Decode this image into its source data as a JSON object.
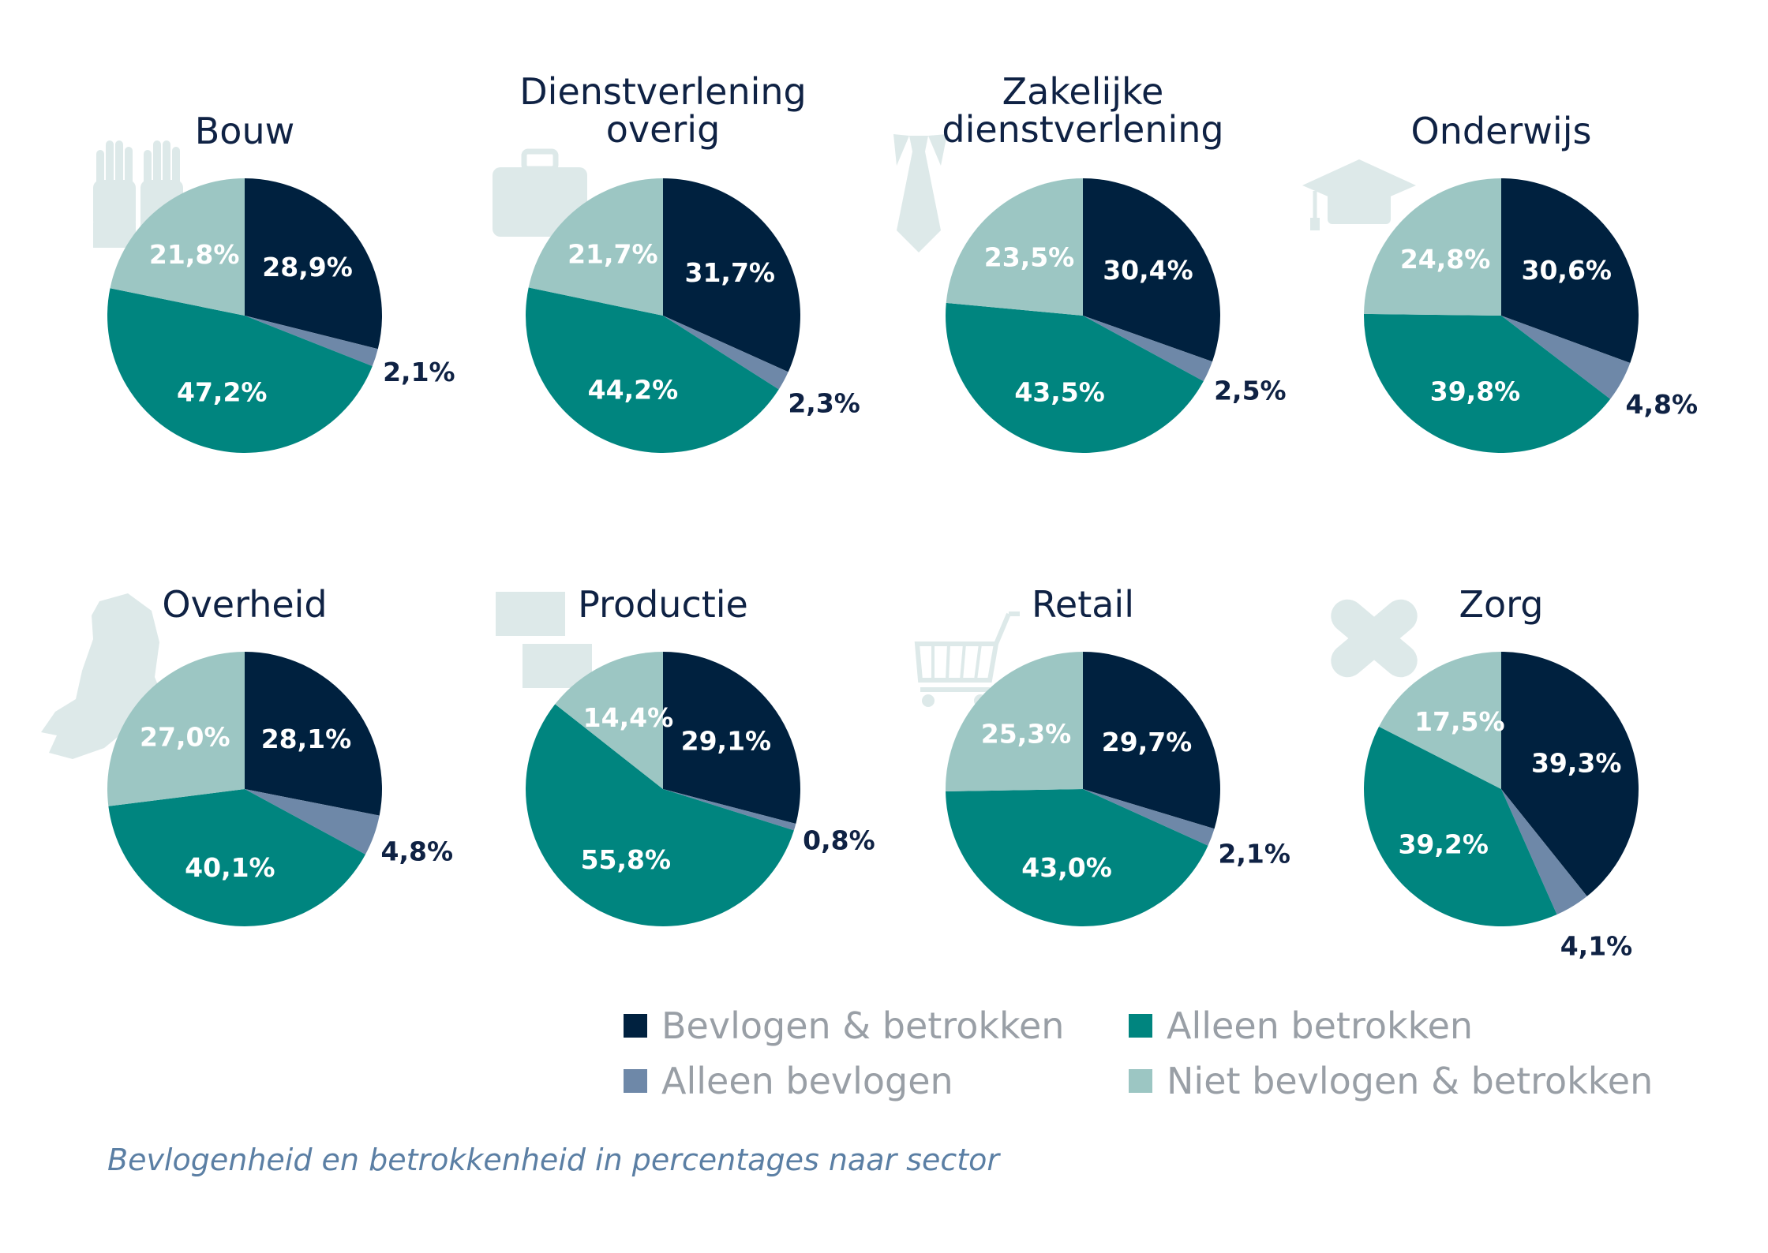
{
  "colors": {
    "bevlogen_betrokken": "#00213f",
    "alleen_bevlogen": "#6e88a8",
    "alleen_betrokken": "#00857f",
    "niet": "#9cc6c3",
    "icon": "#dde9e9",
    "title": "#0f2244",
    "legend_text": "#999fa6",
    "caption": "#5b7fa4"
  },
  "legend": [
    {
      "label": "Bevlogen & betrokken",
      "color": "#00213f"
    },
    {
      "label": "Alleen betrokken",
      "color": "#00857f"
    },
    {
      "label": "Alleen bevlogen",
      "color": "#6e88a8"
    },
    {
      "label": "Niet bevlogen & betrokken",
      "color": "#9cc6c3"
    }
  ],
  "caption": "Bevlogenheid en betrokkenheid in percentages naar sector",
  "chart_data": [
    {
      "type": "pie",
      "title": [
        "Bouw"
      ],
      "icon": "gloves-icon",
      "categories": [
        "Bevlogen & betrokken",
        "Alleen bevlogen",
        "Alleen betrokken",
        "Niet bevlogen & betrokken"
      ],
      "values": [
        28.9,
        2.1,
        47.2,
        21.8
      ],
      "labels": [
        "28,9%",
        "2,1%",
        "47,2%",
        "21,8%"
      ]
    },
    {
      "type": "pie",
      "title": [
        "Dienstverlening",
        "overig"
      ],
      "icon": "briefcase-icon",
      "categories": [
        "Bevlogen & betrokken",
        "Alleen bevlogen",
        "Alleen betrokken",
        "Niet bevlogen & betrokken"
      ],
      "values": [
        31.7,
        2.3,
        44.2,
        21.7
      ],
      "labels": [
        "31,7%",
        "2,3%",
        "44,2%",
        "21,7%"
      ]
    },
    {
      "type": "pie",
      "title": [
        "Zakelijke",
        "dienstverlening"
      ],
      "icon": "tie-icon",
      "categories": [
        "Bevlogen & betrokken",
        "Alleen bevlogen",
        "Alleen betrokken",
        "Niet bevlogen & betrokken"
      ],
      "values": [
        30.4,
        2.5,
        43.5,
        23.5
      ],
      "labels": [
        "30,4%",
        "2,5%",
        "43,5%",
        "23,5%"
      ]
    },
    {
      "type": "pie",
      "title": [
        "Onderwijs"
      ],
      "icon": "graduation-cap-icon",
      "categories": [
        "Bevlogen & betrokken",
        "Alleen bevlogen",
        "Alleen betrokken",
        "Niet bevlogen & betrokken"
      ],
      "values": [
        30.6,
        4.8,
        39.8,
        24.8
      ],
      "labels": [
        "30,6%",
        "4,8%",
        "39,8%",
        "24,8%"
      ]
    },
    {
      "type": "pie",
      "title": [
        "Overheid"
      ],
      "icon": "netherlands-map-icon",
      "categories": [
        "Bevlogen & betrokken",
        "Alleen bevlogen",
        "Alleen betrokken",
        "Niet bevlogen & betrokken"
      ],
      "values": [
        28.1,
        4.8,
        40.1,
        27.0
      ],
      "labels": [
        "28,1%",
        "4,8%",
        "40,1%",
        "27,0%"
      ]
    },
    {
      "type": "pie",
      "title": [
        "Productie"
      ],
      "icon": "boxes-icon",
      "categories": [
        "Bevlogen & betrokken",
        "Alleen bevlogen",
        "Alleen betrokken",
        "Niet bevlogen & betrokken"
      ],
      "values": [
        29.1,
        0.8,
        55.8,
        14.4
      ],
      "labels": [
        "29,1%",
        "0,8%",
        "55,8%",
        "14,4%"
      ]
    },
    {
      "type": "pie",
      "title": [
        "Retail"
      ],
      "icon": "shopping-cart-icon",
      "categories": [
        "Bevlogen & betrokken",
        "Alleen bevlogen",
        "Alleen betrokken",
        "Niet bevlogen & betrokken"
      ],
      "values": [
        29.7,
        2.1,
        43.0,
        25.3
      ],
      "labels": [
        "29,7%",
        "2,1%",
        "43,0%",
        "25,3%"
      ]
    },
    {
      "type": "pie",
      "title": [
        "Zorg"
      ],
      "icon": "bandage-icon",
      "categories": [
        "Bevlogen & betrokken",
        "Alleen bevlogen",
        "Alleen betrokken",
        "Niet bevlogen & betrokken"
      ],
      "values": [
        39.3,
        4.1,
        39.2,
        17.5
      ],
      "labels": [
        "39,3%",
        "4,1%",
        "39,2%",
        "17,5%"
      ]
    }
  ]
}
